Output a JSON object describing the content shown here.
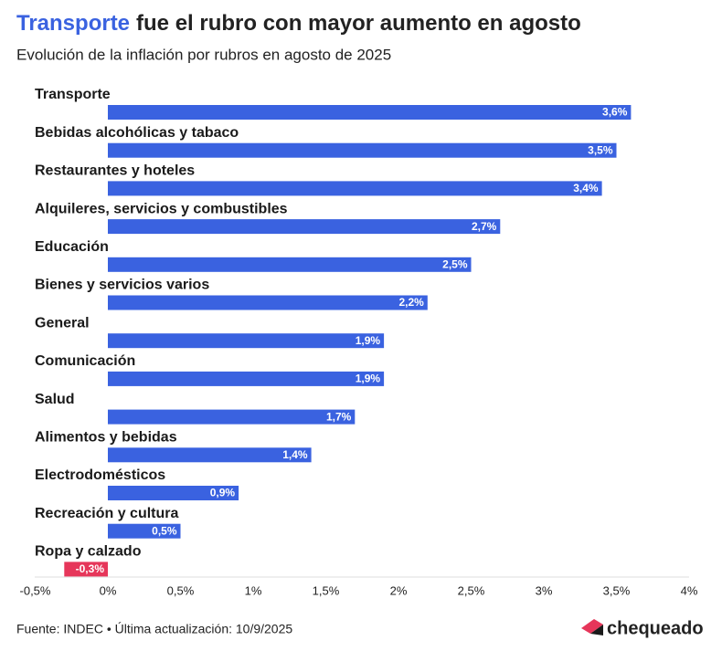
{
  "chart_data": {
    "type": "hbar",
    "title": {
      "highlight": "Transporte",
      "rest": "fue el rubro con mayor aumento en agosto"
    },
    "subtitle": "Evolución de la inflación por rubros en agosto de 2025",
    "categories": [
      "Transporte",
      "Bebidas alcohólicas y tabaco",
      "Restaurantes y hoteles",
      "Alquileres, servicios y combustibles",
      "Educación",
      "Bienes y servicios varios",
      "General",
      "Comunicación",
      "Salud",
      "Alimentos y bebidas",
      "Electrodomésticos",
      "Recreación y cultura",
      "Ropa y calzado"
    ],
    "values": [
      3.6,
      3.5,
      3.4,
      2.7,
      2.5,
      2.2,
      1.9,
      1.9,
      1.7,
      1.4,
      0.9,
      0.5,
      -0.3
    ],
    "value_labels": [
      "3,6%",
      "3,5%",
      "3,4%",
      "2,7%",
      "2,5%",
      "2,2%",
      "1,9%",
      "1,9%",
      "1,7%",
      "1,4%",
      "0,9%",
      "0,5%",
      "-0,3%"
    ],
    "color": "#3a62e0",
    "negative_color": "#e6365a",
    "xlim": [
      -0.5,
      4
    ],
    "xticks": [
      {
        "value": -0.5,
        "label": "-0,5%"
      },
      {
        "value": 0,
        "label": "0%"
      },
      {
        "value": 0.5,
        "label": "0,5%"
      },
      {
        "value": 1,
        "label": "1%"
      },
      {
        "value": 1.5,
        "label": "1,5%"
      },
      {
        "value": 2,
        "label": "2%"
      },
      {
        "value": 2.5,
        "label": "2,5%"
      },
      {
        "value": 3,
        "label": "3%"
      },
      {
        "value": 3.5,
        "label": "3,5%"
      },
      {
        "value": 4,
        "label": "4%"
      }
    ],
    "source": "Fuente: INDEC • Última actualización: 10/9/2025",
    "brand": "chequeado"
  }
}
